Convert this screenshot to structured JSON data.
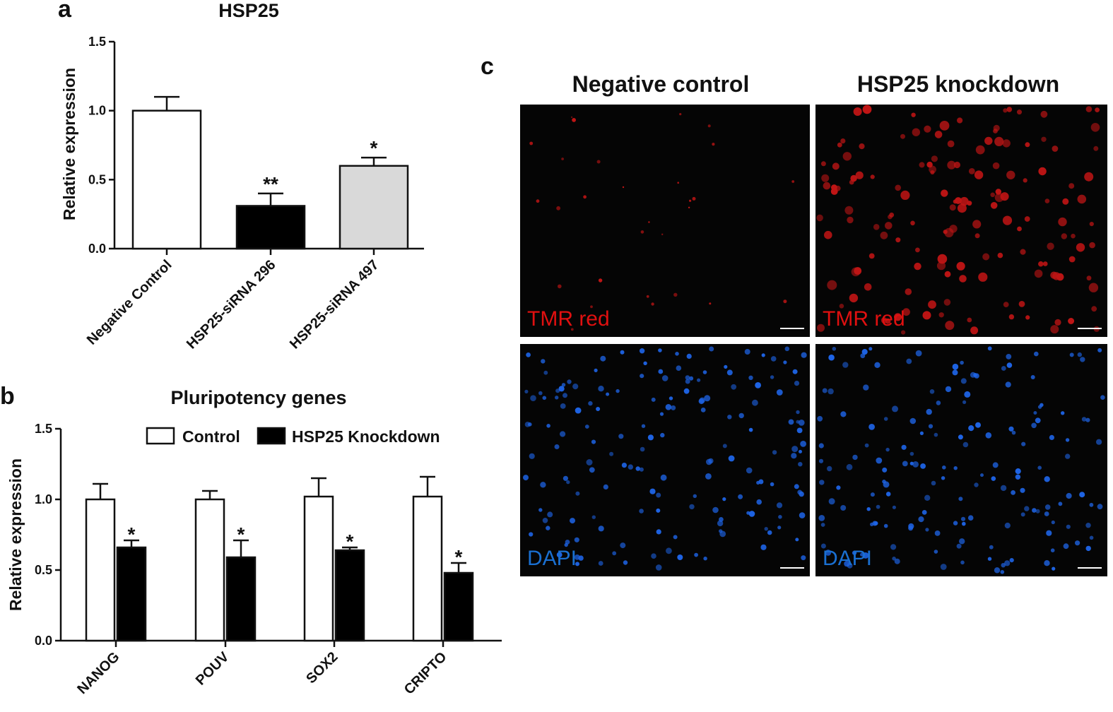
{
  "panels": {
    "a": "a",
    "b": "b",
    "c": "c"
  },
  "chart_data": [
    {
      "type": "bar",
      "title": "HSP25",
      "ylabel": "Relative expression",
      "xlabel": "",
      "ylim": [
        0,
        1.5
      ],
      "yticks": [
        "0.0",
        "0.5",
        "1.0",
        "1.5"
      ],
      "categories": [
        "Negative Control",
        "HSP25-siRNA 296",
        "HSP25-siRNA 497"
      ],
      "values": [
        1.0,
        0.31,
        0.6
      ],
      "errors": [
        0.1,
        0.09,
        0.06
      ],
      "significance": [
        "",
        "**",
        "*"
      ],
      "colors": [
        "#ffffff",
        "#000000",
        "#d9d9d9"
      ]
    },
    {
      "type": "bar",
      "title": "Pluripotency genes",
      "ylabel": "Relative expression",
      "xlabel": "",
      "ylim": [
        0,
        1.5
      ],
      "yticks": [
        "0.0",
        "0.5",
        "1.0",
        "1.5"
      ],
      "categories": [
        "NANOG",
        "POUV",
        "SOX2",
        "CRIPTO"
      ],
      "legend_position": "top",
      "series": [
        {
          "name": "Control",
          "color": "#ffffff",
          "values": [
            1.0,
            1.0,
            1.02,
            1.02
          ],
          "errors": [
            0.11,
            0.06,
            0.13,
            0.14
          ],
          "significance": [
            "",
            "",
            "",
            ""
          ]
        },
        {
          "name": "HSP25 Knockdown",
          "color": "#000000",
          "values": [
            0.66,
            0.59,
            0.64,
            0.48
          ],
          "errors": [
            0.05,
            0.12,
            0.02,
            0.07
          ],
          "significance": [
            "*",
            "*",
            "*",
            "*"
          ]
        }
      ]
    }
  ],
  "microscopy": {
    "columns": [
      "Negative control",
      "HSP25 knockdown"
    ],
    "rows": [
      {
        "label": "TMR red",
        "color": "#e01010"
      },
      {
        "label": "DAPI",
        "color": "#1a6fd0"
      }
    ]
  }
}
